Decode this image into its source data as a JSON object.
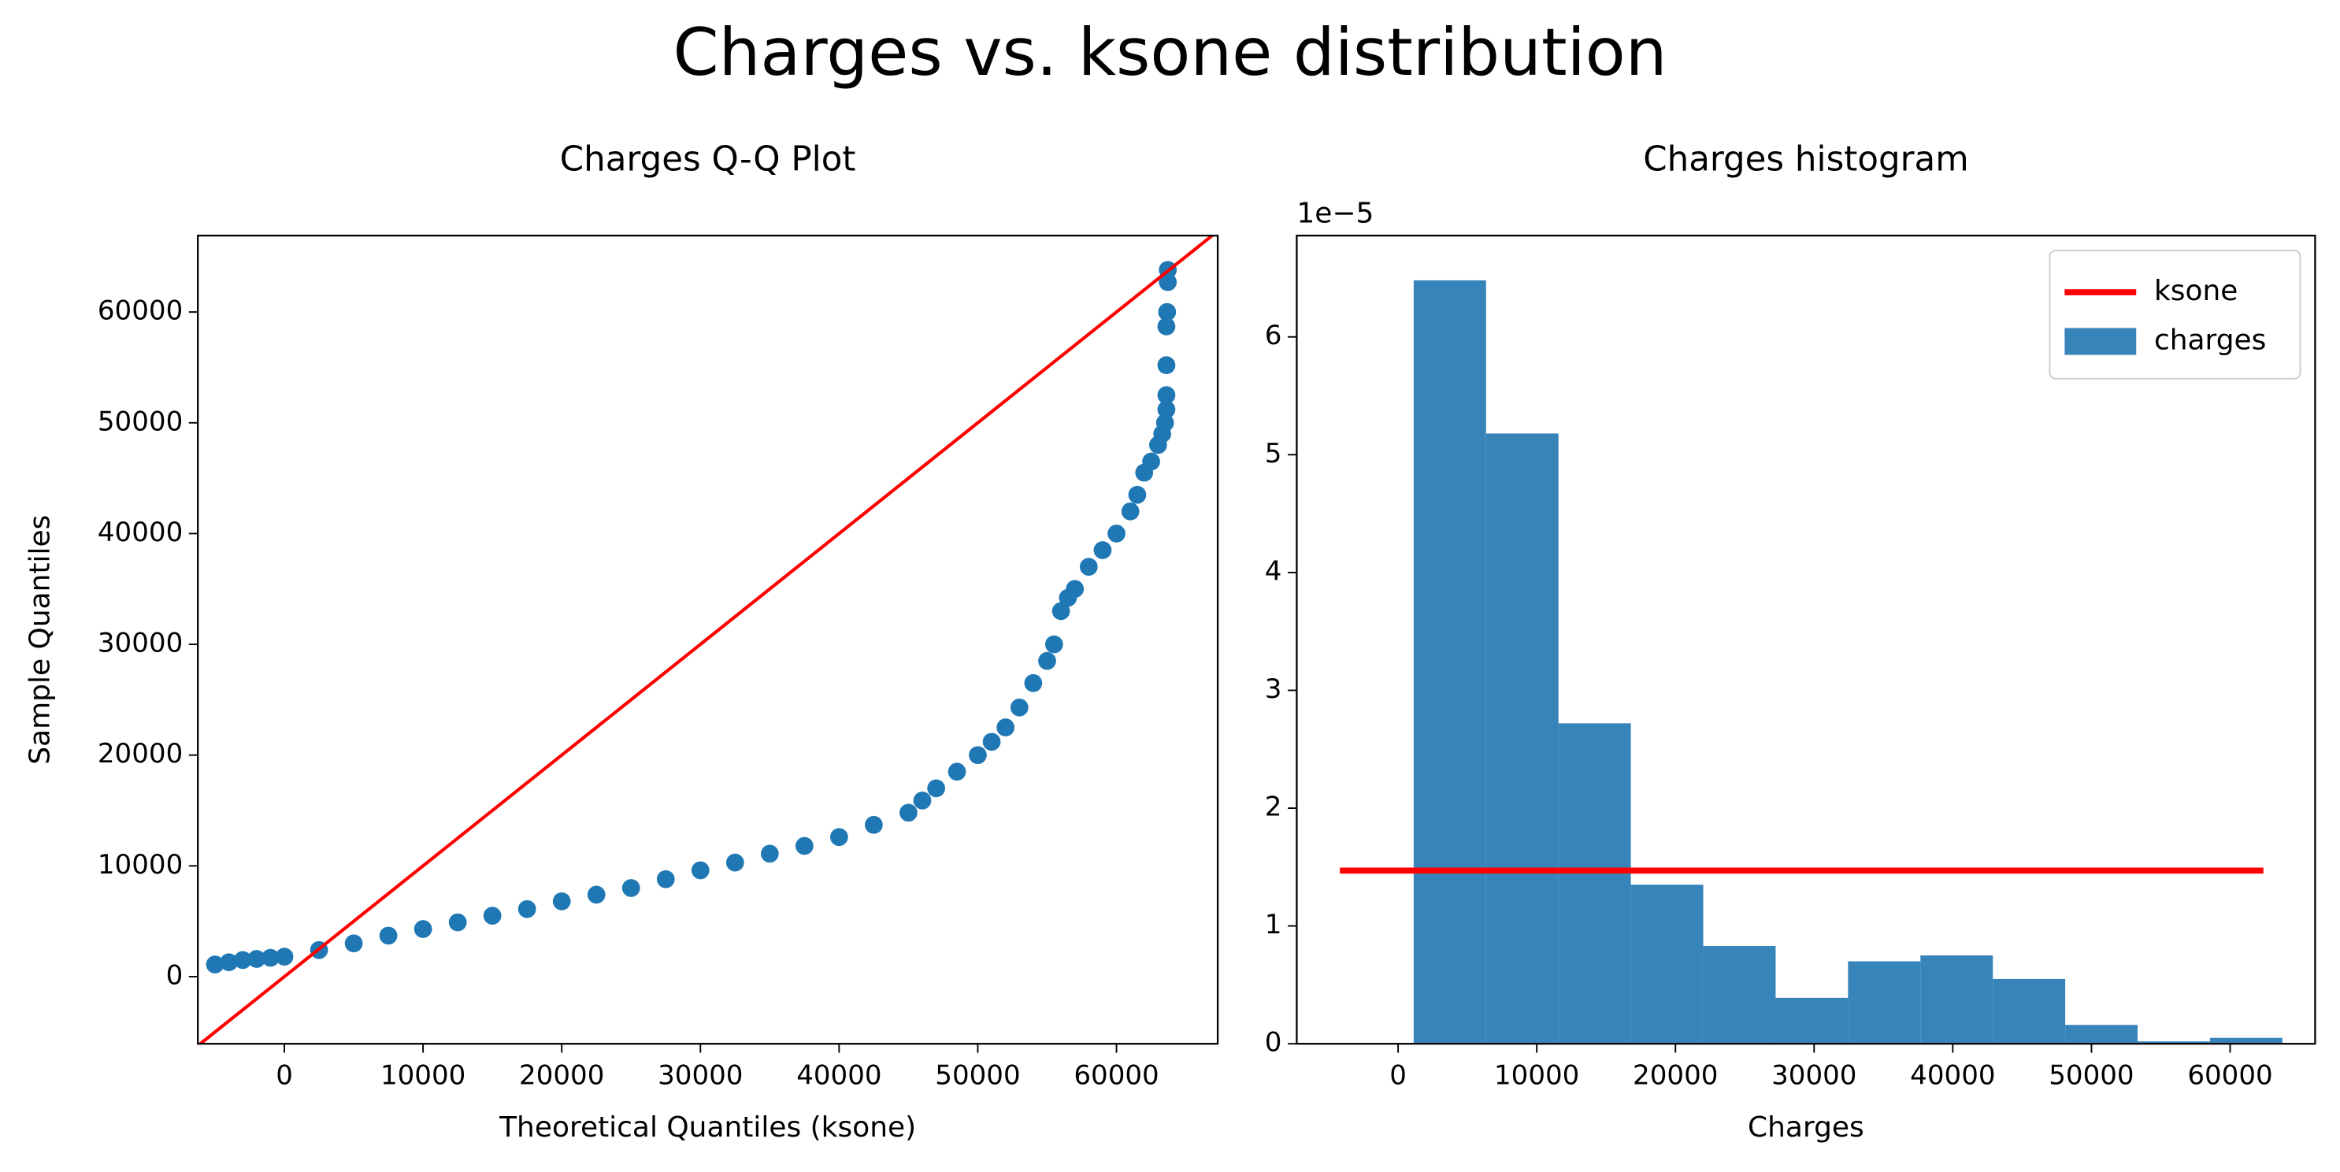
{
  "title": "Charges vs. ksone distribution",
  "chart_data": [
    {
      "type": "scatter",
      "title": "Charges Q-Q Plot",
      "x_label": "Theoretical Quantiles (ksone)",
      "y_label": "Sample Quantiles",
      "xlim": [
        -6240,
        67300
      ],
      "ylim": [
        -6060,
        66900
      ],
      "xticks": [
        0,
        10000,
        20000,
        30000,
        40000,
        50000,
        60000
      ],
      "yticks": [
        0,
        10000,
        20000,
        30000,
        40000,
        50000,
        60000
      ],
      "series": [
        {
          "color": "#1f77b4",
          "x": [
            -5000,
            -4000,
            -3000,
            -2000,
            -1000,
            0,
            2500,
            5000,
            7500,
            10000,
            12500,
            15000,
            17500,
            20000,
            22500,
            25000,
            27500,
            30000,
            32500,
            35000,
            37500,
            40000,
            42500,
            45000,
            46000,
            47000,
            48500,
            50000,
            51000,
            52000,
            53000,
            54000,
            55000,
            55500,
            56000,
            56500,
            57000,
            58000,
            59000,
            60000,
            61000,
            61500,
            62000,
            62500,
            63000,
            63300,
            63500,
            63600,
            63600,
            63600,
            63600,
            63650,
            63700,
            63700
          ],
          "values": [
            1100,
            1300,
            1500,
            1600,
            1700,
            1800,
            2400,
            3000,
            3700,
            4300,
            4900,
            5500,
            6100,
            6800,
            7400,
            8000,
            8800,
            9600,
            10300,
            11100,
            11800,
            12600,
            13700,
            14800,
            15900,
            17000,
            18500,
            20000,
            21200,
            22500,
            24300,
            26500,
            28500,
            30000,
            33000,
            34200,
            35000,
            37000,
            38500,
            40000,
            42000,
            43500,
            45500,
            46500,
            48000,
            49000,
            50000,
            51200,
            52500,
            55200,
            58700,
            60000,
            62700,
            63800
          ]
        }
      ],
      "reference_line": {
        "color": "#ff0000",
        "x": [
          -6240,
          67300
        ],
        "values": [
          -6240,
          67300
        ]
      }
    },
    {
      "type": "histogram",
      "title": "Charges histogram",
      "x_label": "Charges",
      "offset_label": "1e−5",
      "xlim": [
        -7310,
        66130
      ],
      "ylim": [
        0,
        6.86
      ],
      "xticks": [
        0,
        10000,
        20000,
        30000,
        40000,
        50000,
        60000
      ],
      "yticks": [
        0,
        1,
        2,
        3,
        4,
        5,
        6
      ],
      "bins": [
        1122,
        6343,
        11564,
        16784,
        22005,
        27226,
        32446,
        37667,
        42888,
        48108,
        53329,
        58550,
        63770
      ],
      "series": [
        {
          "name": "charges",
          "color": "#3784bb",
          "values": [
            6.48,
            5.18,
            2.72,
            1.35,
            0.83,
            0.39,
            0.7,
            0.75,
            0.55,
            0.16,
            0.02,
            0.05
          ]
        }
      ],
      "lines": [
        {
          "name": "ksone",
          "color": "#ff0000",
          "x": [
            -4200,
            62400
          ],
          "values": [
            1.47,
            1.47
          ]
        }
      ],
      "legend": "upper right"
    }
  ]
}
